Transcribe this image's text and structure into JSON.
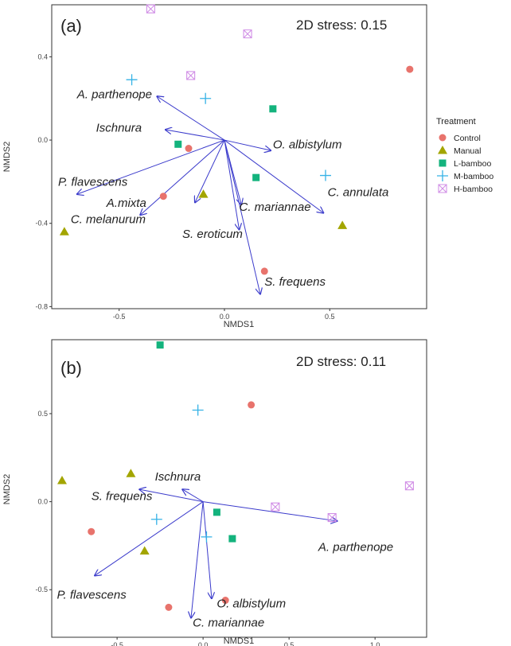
{
  "colors": {
    "Control": "#e8736c",
    "Manual": "#a3a500",
    "L-bamboo": "#14b37d",
    "M-bamboo": "#35b2e6",
    "H-bamboo": "#d18fe6",
    "arrow": "#3a3acb"
  },
  "legend": {
    "title": "Treatment",
    "items": [
      {
        "name": "Control",
        "shape": "circle"
      },
      {
        "name": "Manual",
        "shape": "triangle"
      },
      {
        "name": "L-bamboo",
        "shape": "square"
      },
      {
        "name": "M-bamboo",
        "shape": "plus"
      },
      {
        "name": "H-bamboo",
        "shape": "boxx"
      }
    ]
  },
  "chart_data": [
    {
      "type": "scatter",
      "panel_label": "(a)",
      "annotation": "2D stress: 0.15",
      "xlabel": "NMDS1",
      "ylabel": "NMDS2",
      "xlim": [
        -0.82,
        0.96
      ],
      "ylim": [
        -0.81,
        0.65
      ],
      "xticks": [
        {
          "v": -0.5,
          "label": "-0.5"
        },
        {
          "v": 0.0,
          "label": "0.0"
        },
        {
          "v": 0.5,
          "label": "0.5"
        }
      ],
      "yticks": [
        {
          "v": 0.4,
          "label": "0.4"
        },
        {
          "v": 0.0,
          "label": "0.0"
        },
        {
          "v": -0.4,
          "label": "-0.4"
        },
        {
          "v": -0.8,
          "label": "-0.8"
        }
      ],
      "series": [
        {
          "name": "Control",
          "points": [
            [
              0.88,
              0.34
            ],
            [
              -0.29,
              -0.27
            ],
            [
              -0.17,
              -0.04
            ],
            [
              0.19,
              -0.63
            ]
          ]
        },
        {
          "name": "Manual",
          "points": [
            [
              -0.1,
              -0.26
            ],
            [
              0.56,
              -0.41
            ],
            [
              -0.76,
              -0.44
            ]
          ]
        },
        {
          "name": "L-bamboo",
          "points": [
            [
              0.23,
              0.15
            ],
            [
              -0.22,
              -0.02
            ],
            [
              0.15,
              -0.18
            ]
          ]
        },
        {
          "name": "M-bamboo",
          "points": [
            [
              -0.44,
              0.29
            ],
            [
              -0.09,
              0.2
            ],
            [
              0.48,
              -0.17
            ]
          ]
        },
        {
          "name": "H-bamboo",
          "points": [
            [
              -0.35,
              0.63
            ],
            [
              0.11,
              0.51
            ],
            [
              -0.16,
              0.31
            ]
          ]
        }
      ],
      "vectors": [
        {
          "label": "A. parthenope",
          "end": [
            -0.32,
            0.21
          ],
          "lx": -0.7,
          "ly": 0.2
        },
        {
          "label": "Ischnura",
          "end": [
            -0.28,
            0.05
          ],
          "lx": -0.61,
          "ly": 0.04
        },
        {
          "label": "O. albistylum",
          "end": [
            0.22,
            -0.05
          ],
          "lx": 0.23,
          "ly": -0.04
        },
        {
          "label": "P. flavescens",
          "end": [
            -0.7,
            -0.26
          ],
          "lx": -0.79,
          "ly": -0.22
        },
        {
          "label": "A.mixta",
          "end": [
            -0.4,
            -0.36
          ],
          "lx": -0.56,
          "ly": -0.32
        },
        {
          "label": "C. melanurum",
          "end": [
            -0.14,
            -0.3
          ],
          "lx": -0.73,
          "ly": -0.4
        },
        {
          "label": "C. annulata",
          "end": [
            0.47,
            -0.35
          ],
          "lx": 0.49,
          "ly": -0.27
        },
        {
          "label": "C. mariannae",
          "end": [
            0.08,
            -0.31
          ],
          "lx": 0.07,
          "ly": -0.34
        },
        {
          "label": "S. eroticum",
          "end": [
            0.07,
            -0.43
          ],
          "lx": -0.2,
          "ly": -0.47
        },
        {
          "label": "S. frequens",
          "end": [
            0.17,
            -0.74
          ],
          "lx": 0.19,
          "ly": -0.7
        }
      ]
    },
    {
      "type": "scatter",
      "panel_label": "(b)",
      "annotation": "2D stress: 0.11",
      "xlabel": "NMDS1",
      "ylabel": "NMDS2",
      "xlim": [
        -0.88,
        1.3
      ],
      "ylim": [
        -0.77,
        0.92
      ],
      "xticks": [
        {
          "v": -0.5,
          "label": "-0.5"
        },
        {
          "v": 0.0,
          "label": "0.0"
        },
        {
          "v": 0.5,
          "label": "0.5"
        },
        {
          "v": 1.0,
          "label": "1.0"
        }
      ],
      "yticks": [
        {
          "v": 0.5,
          "label": "0.5"
        },
        {
          "v": 0.0,
          "label": "0.0"
        },
        {
          "v": -0.5,
          "label": "-0.5"
        }
      ],
      "series": [
        {
          "name": "Control",
          "points": [
            [
              0.28,
              0.55
            ],
            [
              -0.65,
              -0.17
            ],
            [
              -0.2,
              -0.6
            ],
            [
              0.13,
              -0.56
            ]
          ]
        },
        {
          "name": "Manual",
          "points": [
            [
              -0.82,
              0.12
            ],
            [
              -0.42,
              0.16
            ],
            [
              -0.34,
              -0.28
            ]
          ]
        },
        {
          "name": "L-bamboo",
          "points": [
            [
              -0.25,
              0.89
            ],
            [
              0.08,
              -0.06
            ],
            [
              0.17,
              -0.21
            ]
          ]
        },
        {
          "name": "M-bamboo",
          "points": [
            [
              -0.03,
              0.52
            ],
            [
              -0.27,
              -0.1
            ],
            [
              0.02,
              -0.2
            ]
          ]
        },
        {
          "name": "H-bamboo",
          "points": [
            [
              0.42,
              -0.03
            ],
            [
              0.75,
              -0.09
            ],
            [
              1.2,
              0.09
            ]
          ]
        }
      ],
      "vectors": [
        {
          "label": "Ischnura",
          "end": [
            -0.12,
            0.07
          ],
          "lx": -0.28,
          "ly": 0.12
        },
        {
          "label": "S. frequens",
          "end": [
            -0.37,
            0.07
          ],
          "lx": -0.65,
          "ly": 0.01
        },
        {
          "label": "A. parthenope",
          "end": [
            0.78,
            -0.11
          ],
          "lx": 0.67,
          "ly": -0.28
        },
        {
          "label": "P. flavescens",
          "end": [
            -0.63,
            -0.42
          ],
          "lx": -0.85,
          "ly": -0.55
        },
        {
          "label": "O. albistylum",
          "end": [
            0.05,
            -0.55
          ],
          "lx": 0.08,
          "ly": -0.6
        },
        {
          "label": "C. mariannae",
          "end": [
            -0.07,
            -0.66
          ],
          "lx": -0.06,
          "ly": -0.71
        }
      ]
    }
  ]
}
